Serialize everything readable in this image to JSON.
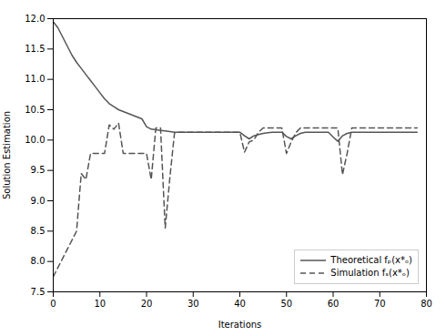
{
  "chart_data": {
    "type": "line",
    "title": "",
    "xlabel": "Iterations",
    "ylabel": "Solution Estimation",
    "xlim": [
      0,
      80
    ],
    "ylim": [
      7.5,
      12
    ],
    "xticks": [
      0,
      10,
      20,
      30,
      40,
      50,
      60,
      70,
      80
    ],
    "yticks": [
      7.5,
      {
        "value": 8,
        "label": "8.0"
      },
      8.5,
      {
        "value": 9,
        "label": "9.0"
      },
      9.5,
      {
        "value": 10,
        "label": "10.0"
      },
      10.5,
      {
        "value": 11,
        "label": "11.0"
      },
      11.5,
      {
        "value": 12,
        "label": "12.0"
      }
    ],
    "grid": false,
    "legend": "lower right",
    "x": [
      0,
      1,
      2,
      3,
      4,
      5,
      6,
      7,
      8,
      9,
      10,
      11,
      12,
      13,
      14,
      15,
      16,
      17,
      18,
      19,
      20,
      21,
      22,
      23,
      24,
      25,
      26,
      27,
      28,
      29,
      30,
      31,
      32,
      33,
      34,
      35,
      36,
      37,
      38,
      39,
      40,
      41,
      42,
      43,
      44,
      45,
      46,
      47,
      48,
      49,
      50,
      51,
      52,
      53,
      54,
      55,
      56,
      57,
      58,
      59,
      60,
      61,
      62,
      63,
      64,
      65,
      66,
      67,
      68,
      69,
      70,
      71,
      72,
      73,
      74,
      75,
      76,
      77,
      78
    ],
    "series": [
      {
        "name": "Theoretical fₚ(x*ₒ)",
        "color": "#555555",
        "line_style": "solid",
        "values": [
          11.95,
          11.85,
          11.7,
          11.55,
          11.4,
          11.28,
          11.18,
          11.08,
          10.98,
          10.88,
          10.78,
          10.68,
          10.6,
          10.55,
          10.5,
          10.47,
          10.44,
          10.41,
          10.38,
          10.35,
          10.22,
          10.18,
          10.17,
          10.16,
          10.15,
          10.14,
          10.13,
          10.13,
          10.13,
          10.13,
          10.13,
          10.13,
          10.13,
          10.13,
          10.13,
          10.13,
          10.13,
          10.13,
          10.13,
          10.13,
          10.13,
          10.07,
          10.02,
          10.07,
          10.09,
          10.11,
          10.12,
          10.13,
          10.13,
          10.13,
          10.06,
          10.02,
          10.07,
          10.11,
          10.13,
          10.13,
          10.13,
          10.13,
          10.13,
          10.13,
          10.05,
          9.98,
          10.07,
          10.11,
          10.13,
          10.13,
          10.13,
          10.13,
          10.13,
          10.13,
          10.13,
          10.13,
          10.13,
          10.13,
          10.13,
          10.13,
          10.13,
          10.13,
          10.13
        ]
      },
      {
        "name": "Simulation fₛ(x*ₒ)",
        "color": "#555555",
        "line_style": "dashed",
        "values": [
          7.75,
          7.9,
          8.05,
          8.2,
          8.35,
          8.5,
          9.45,
          9.35,
          9.78,
          9.78,
          9.78,
          9.78,
          10.25,
          10.18,
          10.28,
          9.78,
          9.78,
          9.78,
          9.78,
          9.78,
          9.78,
          9.35,
          10.2,
          10.2,
          8.55,
          9.38,
          10.12,
          10.13,
          10.13,
          10.13,
          10.13,
          10.13,
          10.13,
          10.13,
          10.13,
          10.13,
          10.13,
          10.13,
          10.13,
          10.13,
          10.13,
          9.8,
          9.97,
          10.0,
          10.13,
          10.2,
          10.2,
          10.2,
          10.2,
          10.2,
          9.78,
          9.97,
          10.12,
          10.2,
          10.2,
          10.2,
          10.2,
          10.2,
          10.2,
          10.2,
          10.2,
          10.2,
          9.43,
          9.78,
          10.2,
          10.2,
          10.2,
          10.2,
          10.2,
          10.2,
          10.2,
          10.2,
          10.2,
          10.2,
          10.2,
          10.2,
          10.2,
          10.2,
          10.2
        ]
      }
    ]
  }
}
